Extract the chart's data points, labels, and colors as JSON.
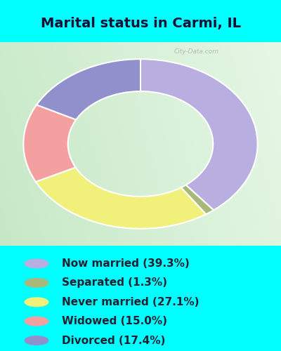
{
  "title": "Marital status in Carmi, IL",
  "slices": [
    {
      "label": "Now married (39.3%)",
      "value": 39.3,
      "color": "#b8aee0"
    },
    {
      "label": "Separated (1.3%)",
      "value": 1.3,
      "color": "#a8b87a"
    },
    {
      "label": "Never married (27.1%)",
      "value": 27.1,
      "color": "#f0f07a"
    },
    {
      "label": "Widowed (15.0%)",
      "value": 15.0,
      "color": "#f5a0a0"
    },
    {
      "label": "Divorced (17.4%)",
      "value": 17.4,
      "color": "#9090cc"
    }
  ],
  "bg_color": "#00ffff",
  "chart_bg_left": "#d8edd8",
  "chart_bg_right": "#e8f5e8",
  "donut_width": 0.38,
  "title_fontsize": 14,
  "legend_fontsize": 11,
  "start_angle": 90,
  "watermark": "City-Data.com"
}
